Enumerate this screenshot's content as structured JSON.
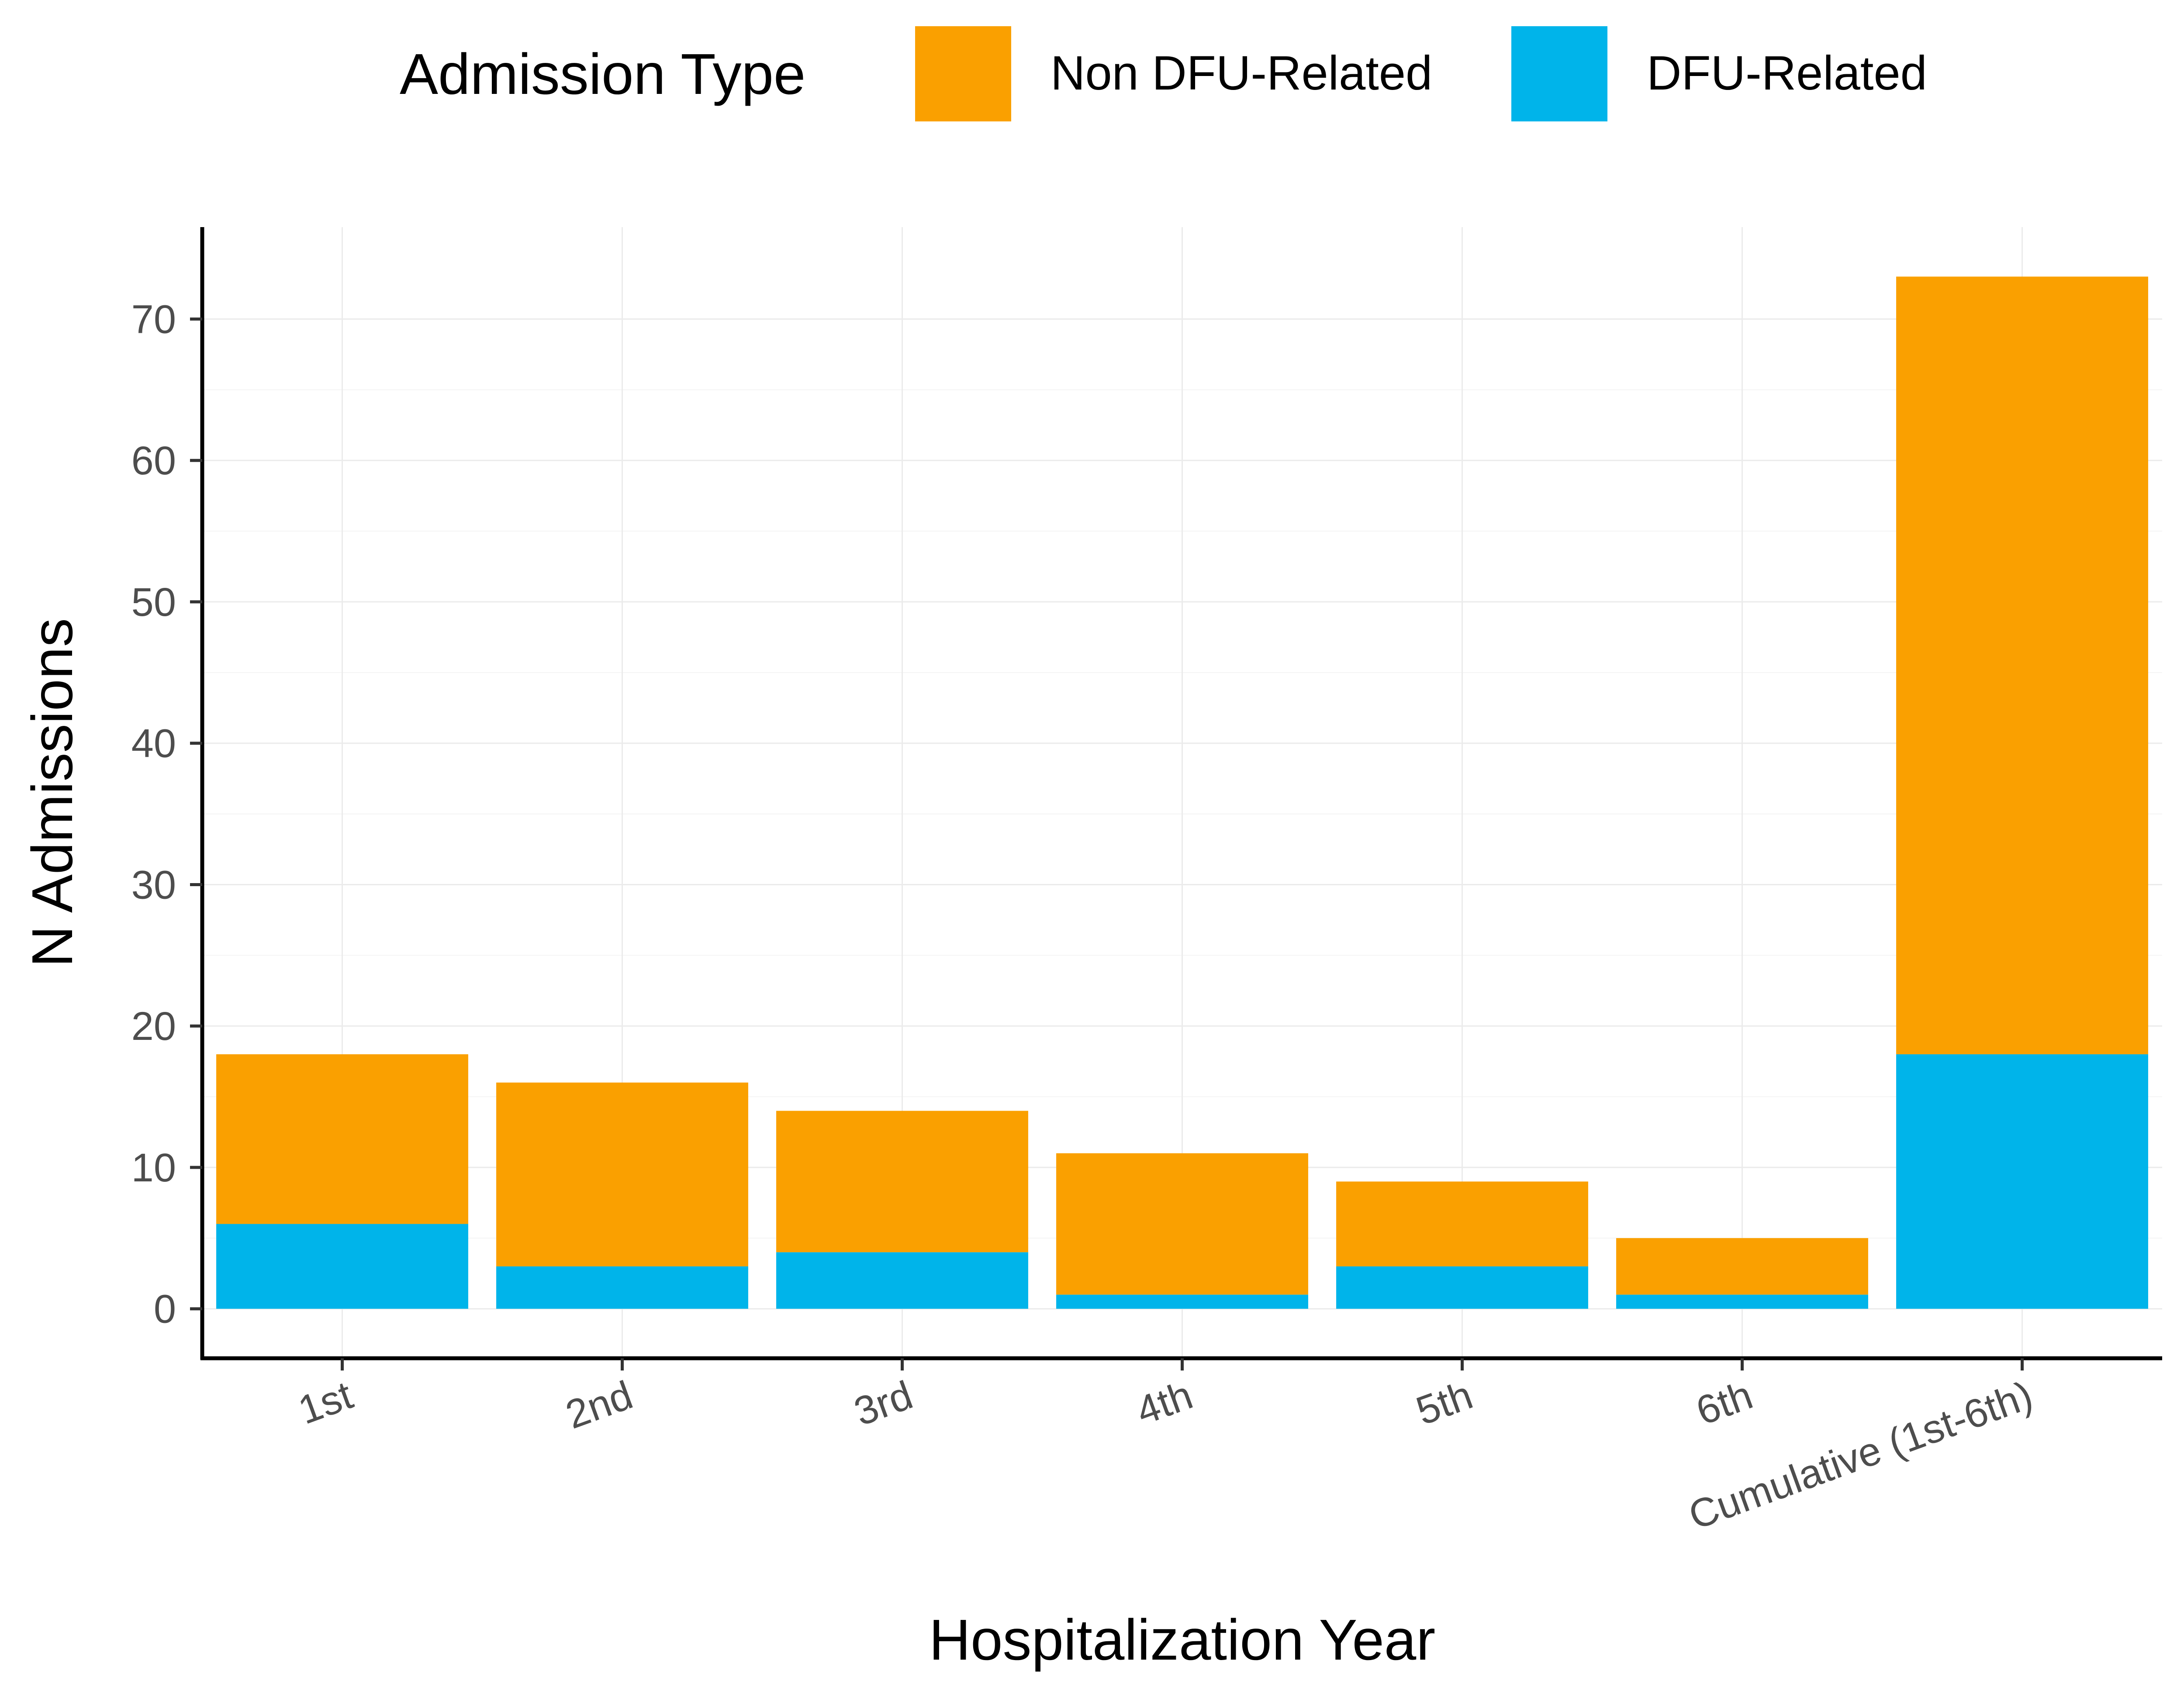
{
  "chart_data": {
    "type": "bar",
    "stacked": true,
    "title": "",
    "xlabel": "Hospitalization Year",
    "ylabel": "N Admissions",
    "categories": [
      "1st",
      "2nd",
      "3rd",
      "4th",
      "5th",
      "6th",
      "Cumulative (1st-6th)"
    ],
    "series": [
      {
        "name": "DFU-Related",
        "color": "#00B4EA",
        "values": [
          6,
          3,
          4,
          1,
          3,
          1,
          18
        ]
      },
      {
        "name": "Non DFU-Related",
        "color": "#FAA000",
        "values": [
          12,
          13,
          10,
          10,
          6,
          4,
          55
        ]
      }
    ],
    "totals": [
      18,
      16,
      14,
      11,
      9,
      5,
      73
    ],
    "ylim": [
      -3.5,
      76.5
    ],
    "yticks": [
      0,
      10,
      20,
      30,
      40,
      50,
      60,
      70
    ],
    "grid": true,
    "legend": {
      "title": "Admission Type",
      "position": "top",
      "order": [
        "Non DFU-Related",
        "DFU-Related"
      ]
    }
  }
}
